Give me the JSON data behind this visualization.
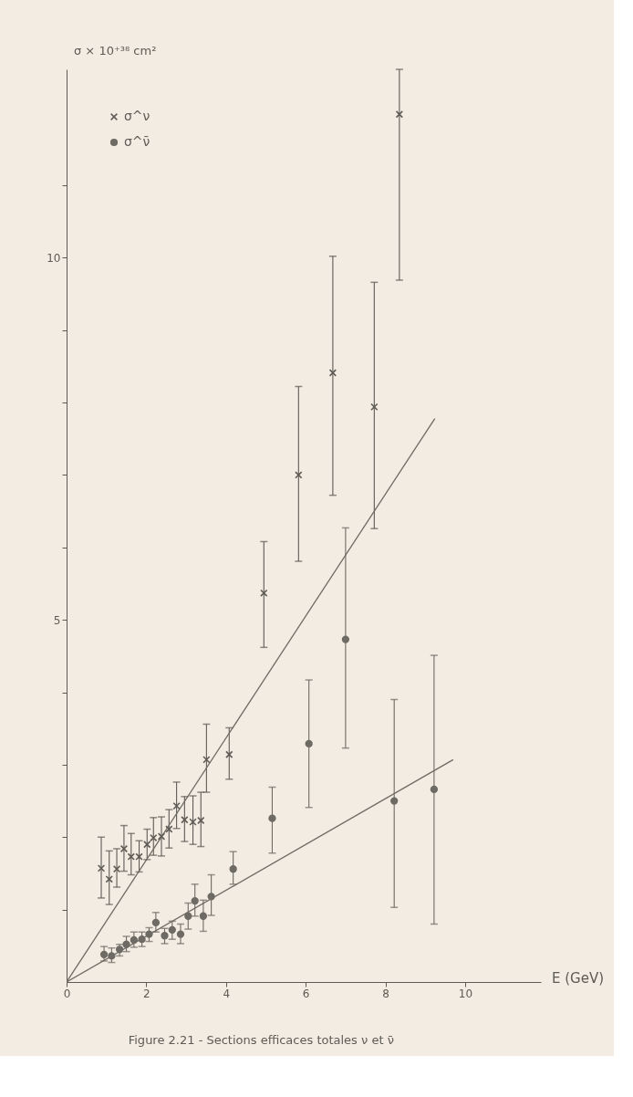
{
  "chart_data": {
    "type": "scatter",
    "xlabel": "E (GeV)",
    "ylabel": "σ × 10⁺³⁸ cm²",
    "annotations": [
      "Figure 2.21 - Sections efficaces totales ν et ν̄"
    ],
    "xlim": [
      0,
      11.9
    ],
    "ylim": [
      0,
      12.6
    ],
    "xticks": [
      0,
      2,
      4,
      6,
      8,
      10
    ],
    "yticks": [
      {
        "value": 1,
        "label": null
      },
      {
        "value": 2,
        "label": null
      },
      {
        "value": 3,
        "label": null
      },
      {
        "value": 4,
        "label": null
      },
      5,
      {
        "value": 6,
        "label": null
      },
      {
        "value": 7,
        "label": null
      },
      {
        "value": 8,
        "label": null
      },
      {
        "value": 9,
        "label": null
      },
      10,
      {
        "value": 11,
        "label": null
      }
    ],
    "grid": false,
    "legend": "top left",
    "series": [
      {
        "name": "σ^ν",
        "marker": "cross",
        "color": "#5e5a55",
        "x": [
          0.87,
          1.07,
          1.26,
          1.44,
          1.62,
          1.82,
          2.02,
          2.18,
          2.38,
          2.57,
          2.76,
          2.96,
          3.17,
          3.37,
          3.51,
          4.08,
          4.95,
          5.82,
          6.68,
          7.72,
          8.35
        ],
        "values": [
          1.57,
          1.42,
          1.56,
          1.84,
          1.73,
          1.73,
          1.9,
          1.99,
          2.01,
          2.11,
          2.43,
          2.24,
          2.21,
          2.23,
          3.07,
          3.14,
          5.37,
          7.0,
          8.41,
          7.94,
          11.98
        ],
        "errors": [
          [
            1.16,
            2.0
          ],
          [
            1.07,
            1.81
          ],
          [
            1.31,
            1.84
          ],
          [
            1.53,
            2.16
          ],
          [
            1.48,
            2.05
          ],
          [
            1.52,
            1.95
          ],
          [
            1.69,
            2.11
          ],
          [
            1.75,
            2.27
          ],
          [
            1.74,
            2.28
          ],
          [
            1.85,
            2.38
          ],
          [
            2.12,
            2.76
          ],
          [
            1.94,
            2.56
          ],
          [
            1.9,
            2.57
          ],
          [
            1.87,
            2.62
          ],
          [
            2.62,
            3.56
          ],
          [
            2.8,
            3.51
          ],
          [
            4.62,
            6.08
          ],
          [
            5.81,
            8.22
          ],
          [
            6.72,
            10.02
          ],
          [
            6.26,
            9.66
          ],
          [
            9.69,
            12.6
          ]
        ]
      },
      {
        "name": "σ^ν̄",
        "marker": "circle",
        "color": "#6e6a64",
        "x": [
          0.94,
          1.13,
          1.33,
          1.5,
          1.69,
          1.89,
          2.07,
          2.24,
          2.46,
          2.65,
          2.86,
          3.05,
          3.22,
          3.43,
          3.63,
          4.18,
          5.16,
          6.08,
          7.0,
          8.22,
          9.22
        ],
        "values": [
          0.38,
          0.36,
          0.45,
          0.52,
          0.58,
          0.59,
          0.66,
          0.82,
          0.64,
          0.72,
          0.66,
          0.91,
          1.12,
          0.91,
          1.18,
          1.56,
          2.26,
          3.29,
          4.73,
          2.5,
          2.66
        ],
        "errors": [
          [
            0.29,
            0.49
          ],
          [
            0.27,
            0.47
          ],
          [
            0.36,
            0.52
          ],
          [
            0.42,
            0.63
          ],
          [
            0.48,
            0.69
          ],
          [
            0.49,
            0.69
          ],
          [
            0.56,
            0.75
          ],
          [
            0.69,
            0.96
          ],
          [
            0.53,
            0.74
          ],
          [
            0.59,
            0.84
          ],
          [
            0.53,
            0.8
          ],
          [
            0.73,
            1.09
          ],
          [
            0.91,
            1.35
          ],
          [
            0.7,
            1.13
          ],
          [
            0.92,
            1.48
          ],
          [
            1.35,
            1.8
          ],
          [
            1.78,
            2.69
          ],
          [
            2.41,
            4.17
          ],
          [
            3.23,
            6.27
          ],
          [
            1.03,
            3.9
          ],
          [
            0.8,
            4.51
          ]
        ]
      },
      {
        "type": "line",
        "line_style": "solid",
        "color": "#6e6a64",
        "x": [
          0,
          9.24
        ],
        "values": [
          0,
          7.78
        ]
      },
      {
        "type": "line",
        "line_style": "solid",
        "color": "#6e6a64",
        "x": [
          0,
          9.7
        ],
        "values": [
          0,
          3.07
        ]
      }
    ]
  }
}
